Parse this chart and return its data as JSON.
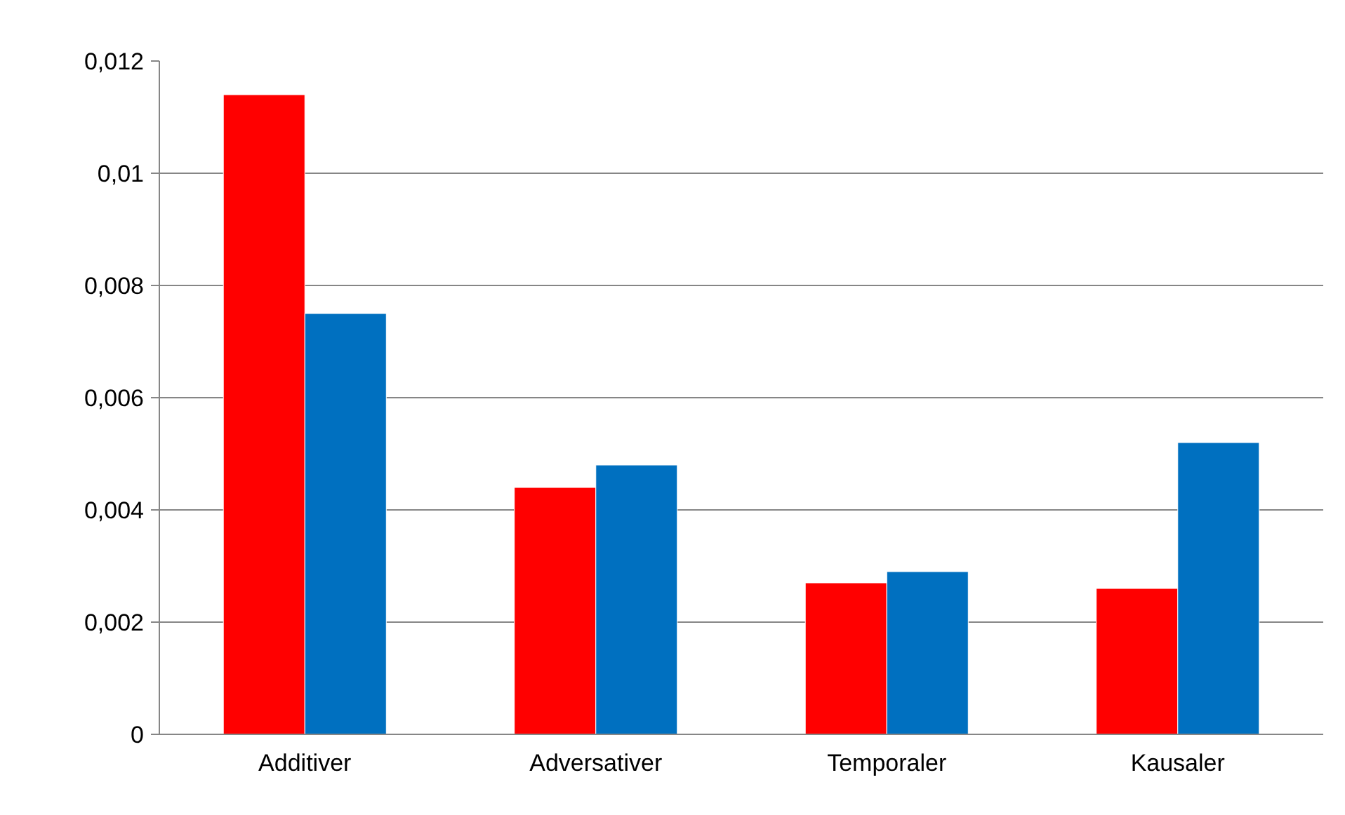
{
  "chart_data": {
    "type": "bar",
    "categories": [
      "Additiver",
      "Adversativer",
      "Temporaler",
      "Kausaler"
    ],
    "series": [
      {
        "color": "#ff0000",
        "values": [
          0.0114,
          0.0044,
          0.0027,
          0.0026
        ]
      },
      {
        "color": "#0070c0",
        "values": [
          0.0075,
          0.0048,
          0.0029,
          0.0052
        ]
      }
    ],
    "ylim": [
      0,
      0.012
    ],
    "yticks": [
      {
        "value": 0,
        "label": "0"
      },
      {
        "value": 0.002,
        "label": "0,002"
      },
      {
        "value": 0.004,
        "label": "0,004"
      },
      {
        "value": 0.006,
        "label": "0,006"
      },
      {
        "value": 0.008,
        "label": "0,008"
      },
      {
        "value": 0.01,
        "label": "0,01"
      },
      {
        "value": 0.012,
        "label": "0,012"
      }
    ],
    "grid": "y"
  }
}
